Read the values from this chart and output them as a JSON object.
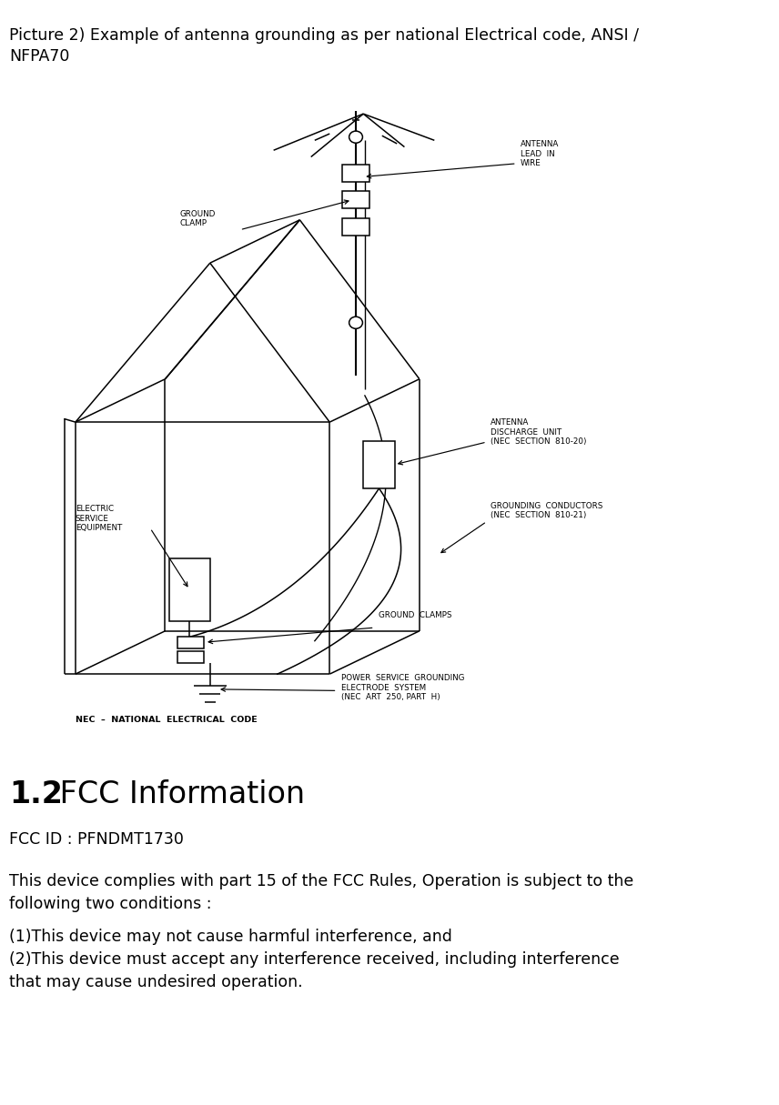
{
  "bg_color": "#ffffff",
  "text_color": "#000000",
  "header_text": "Picture 2) Example of antenna grounding as per national Electrical code, ANSI /\nNFPA70",
  "header_fontsize": 12.5,
  "section_bold": "1.2",
  "section_rest": " FCC Information",
  "section_fontsize": 24,
  "fcc_id": "FCC ID : PFNDMT1730",
  "body1": "This device complies with part 15 of the FCC Rules, Operation is subject to the\nfollowing two conditions :",
  "body2": "(1)This device may not cause harmful interference, and\n(2)This device must accept any interference received, including interference\nthat may cause undesired operation.",
  "body_fontsize": 12.5,
  "line_color": "#000000",
  "lw": 1.1
}
